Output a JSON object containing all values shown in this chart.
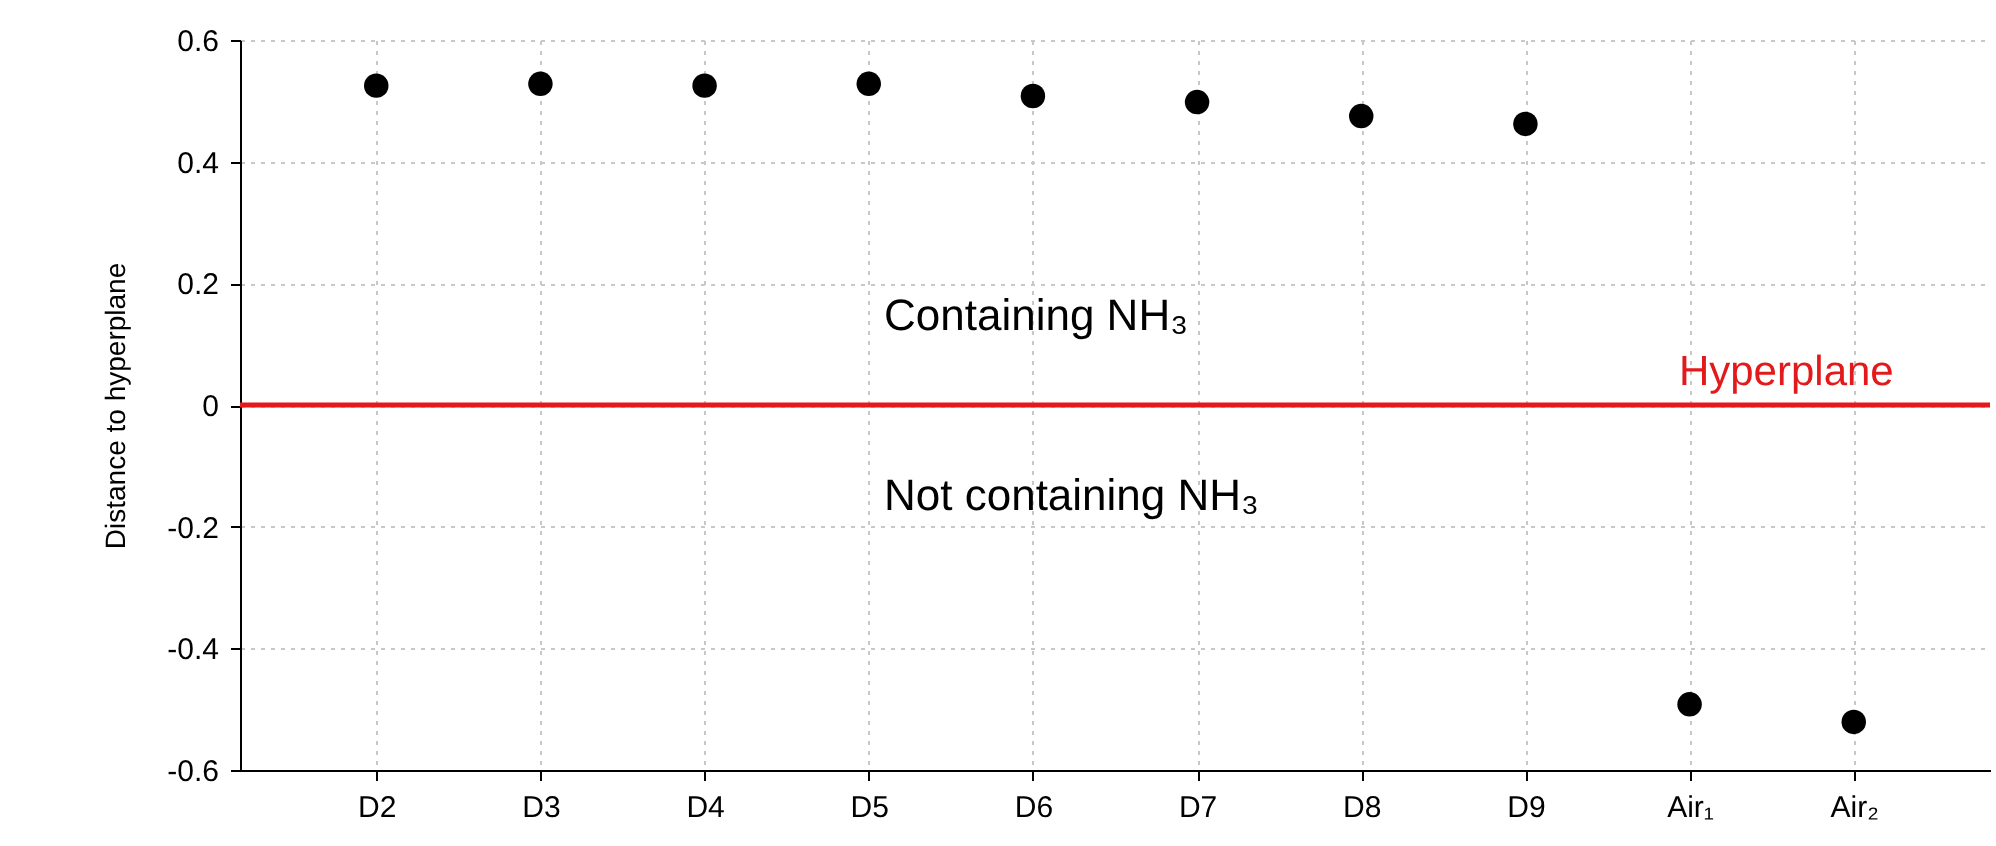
{
  "chart_data": {
    "type": "scatter",
    "ylabel": "Distance to hyperplane",
    "categories": [
      "D2",
      "D3",
      "D4",
      "D5",
      "D6",
      "D7",
      "D8",
      "D9",
      "Air₁",
      "Air₂"
    ],
    "series": [
      {
        "color": "#000000",
        "values": [
          0.525,
          0.528,
          0.525,
          0.528,
          0.508,
          0.498,
          0.475,
          0.462,
          -0.492,
          -0.521
        ]
      }
    ],
    "ylim": [
      -0.6,
      0.6
    ],
    "yticks": [
      -0.6,
      -0.4,
      -0.2,
      0,
      0.2,
      0.4,
      0.6
    ],
    "grid": true,
    "marker": "circle",
    "ref_lines": [
      {
        "axis": "y",
        "value": 0,
        "label": "Hyperplane",
        "color": "#e31a1c"
      }
    ],
    "annotations": [
      "Containing NH₃",
      "Not containing NH₃"
    ]
  }
}
